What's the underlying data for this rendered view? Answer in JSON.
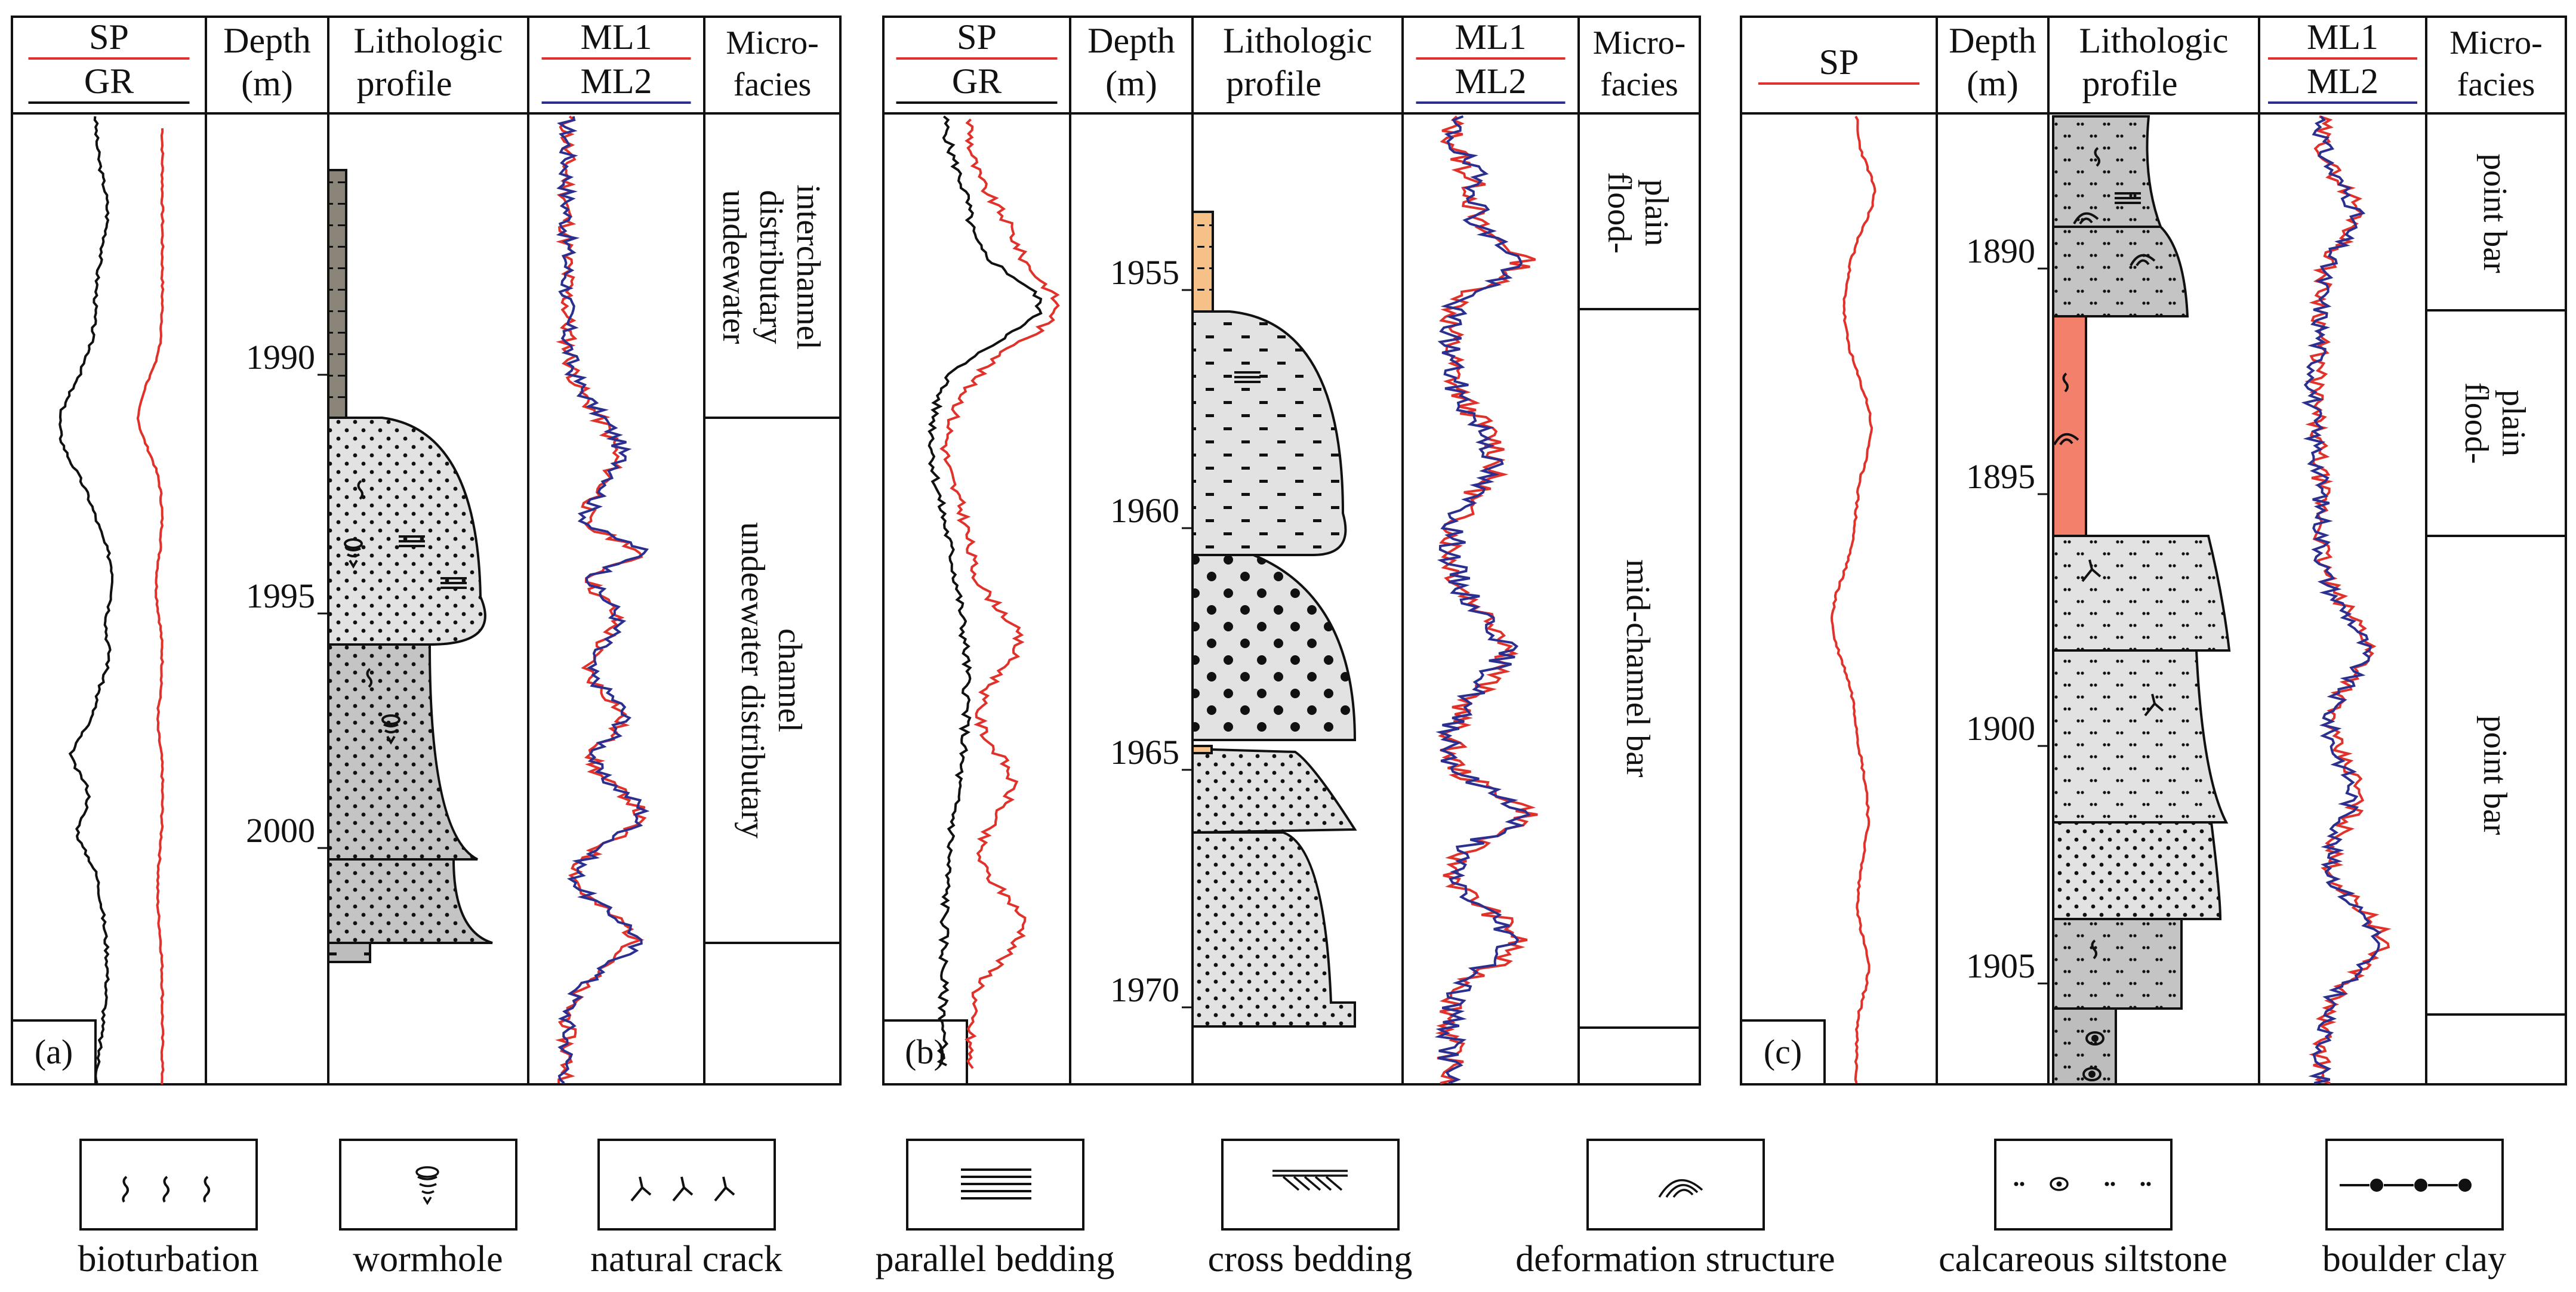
{
  "headers": {
    "sp": "SP",
    "gr": "GR",
    "depth_line1": "Depth",
    "depth_line2": "(m)",
    "litho_line1": "Lithologic",
    "litho_line2": "profile",
    "ml1": "ML1",
    "ml2": "ML2",
    "micro_line1": "Micro-",
    "micro_line2": "facies"
  },
  "panels": [
    {
      "label": "(a)",
      "depth_ticks": [
        "1990",
        "1995",
        "2000"
      ],
      "microfacies": [
        {
          "lines": [
            "undeewater",
            "distributary",
            "interchannel"
          ]
        },
        {
          "lines": [
            "undeewater distributary",
            "channel"
          ]
        }
      ]
    },
    {
      "label": "(b)",
      "depth_ticks": [
        "1955",
        "1960",
        "1965",
        "1970"
      ],
      "microfacies": [
        {
          "lines": [
            "flood-",
            "plain"
          ]
        },
        {
          "lines": [
            "mid-channel bar"
          ]
        }
      ]
    },
    {
      "label": "(c)",
      "depth_ticks": [
        "1890",
        "1895",
        "1900",
        "1905"
      ],
      "microfacies": [
        {
          "lines": [
            "point bar"
          ]
        },
        {
          "lines": [
            "flood-",
            "plain"
          ]
        },
        {
          "lines": [
            "point bar"
          ]
        }
      ]
    }
  ],
  "legend": [
    {
      "label": "bioturbation",
      "icon": "bioturbation-icon"
    },
    {
      "label": "wormhole",
      "icon": "wormhole-icon"
    },
    {
      "label": "natural crack",
      "icon": "natural-crack-icon"
    },
    {
      "label": "parallel bedding",
      "icon": "parallel-bedding-icon"
    },
    {
      "label": "cross bedding",
      "icon": "cross-bedding-icon"
    },
    {
      "label": "deformation structure",
      "icon": "deformation-structure-icon"
    },
    {
      "label": "calcareous siltstone",
      "icon": "calcareous-siltstone-icon"
    },
    {
      "label": "boulder clay",
      "icon": "boulder-clay-icon"
    }
  ],
  "colors": {
    "sp": "#e0312b",
    "gr": "#111111",
    "ml1": "#e0312b",
    "ml2": "#2b2f8f",
    "sandstone": "#e2e2e2",
    "siltstone": "#c4c4c4",
    "mudstone_dark": "#8a8578",
    "mudstone_orange": "#f6c089",
    "mudstone_red": "#f2806a"
  }
}
